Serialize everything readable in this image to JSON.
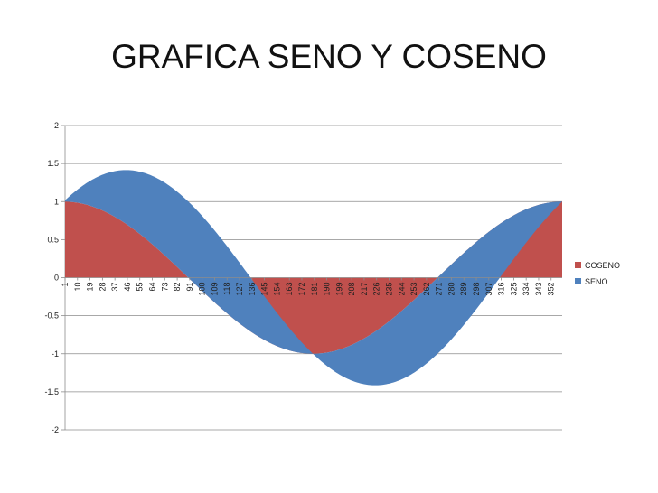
{
  "chart_data": {
    "type": "area",
    "title": "GRAFICA SENO Y COSENO",
    "xlabel": "",
    "ylabel": "",
    "x_start": 1,
    "x_end": 360,
    "x_tick_labels": [
      "1",
      "10",
      "19",
      "28",
      "37",
      "46",
      "55",
      "64",
      "73",
      "82",
      "91",
      "100",
      "109",
      "118",
      "127",
      "136",
      "145",
      "154",
      "163",
      "172",
      "181",
      "190",
      "199",
      "208",
      "217",
      "226",
      "235",
      "244",
      "253",
      "262",
      "271",
      "280",
      "289",
      "298",
      "307",
      "316",
      "325",
      "334",
      "343",
      "352"
    ],
    "ylim": [
      -2,
      2
    ],
    "y_ticks": [
      "2",
      "1.5",
      "1",
      "0.5",
      "0",
      "-0.5",
      "-1",
      "-1.5",
      "-2"
    ],
    "grid": true,
    "legend_position": "right",
    "stacked": true,
    "series": [
      {
        "name": "COSENO",
        "color": "#C0504D",
        "formula": "cos(x degrees)"
      },
      {
        "name": "SENO",
        "color": "#4F81BD",
        "formula": "sin(x degrees)"
      }
    ]
  }
}
